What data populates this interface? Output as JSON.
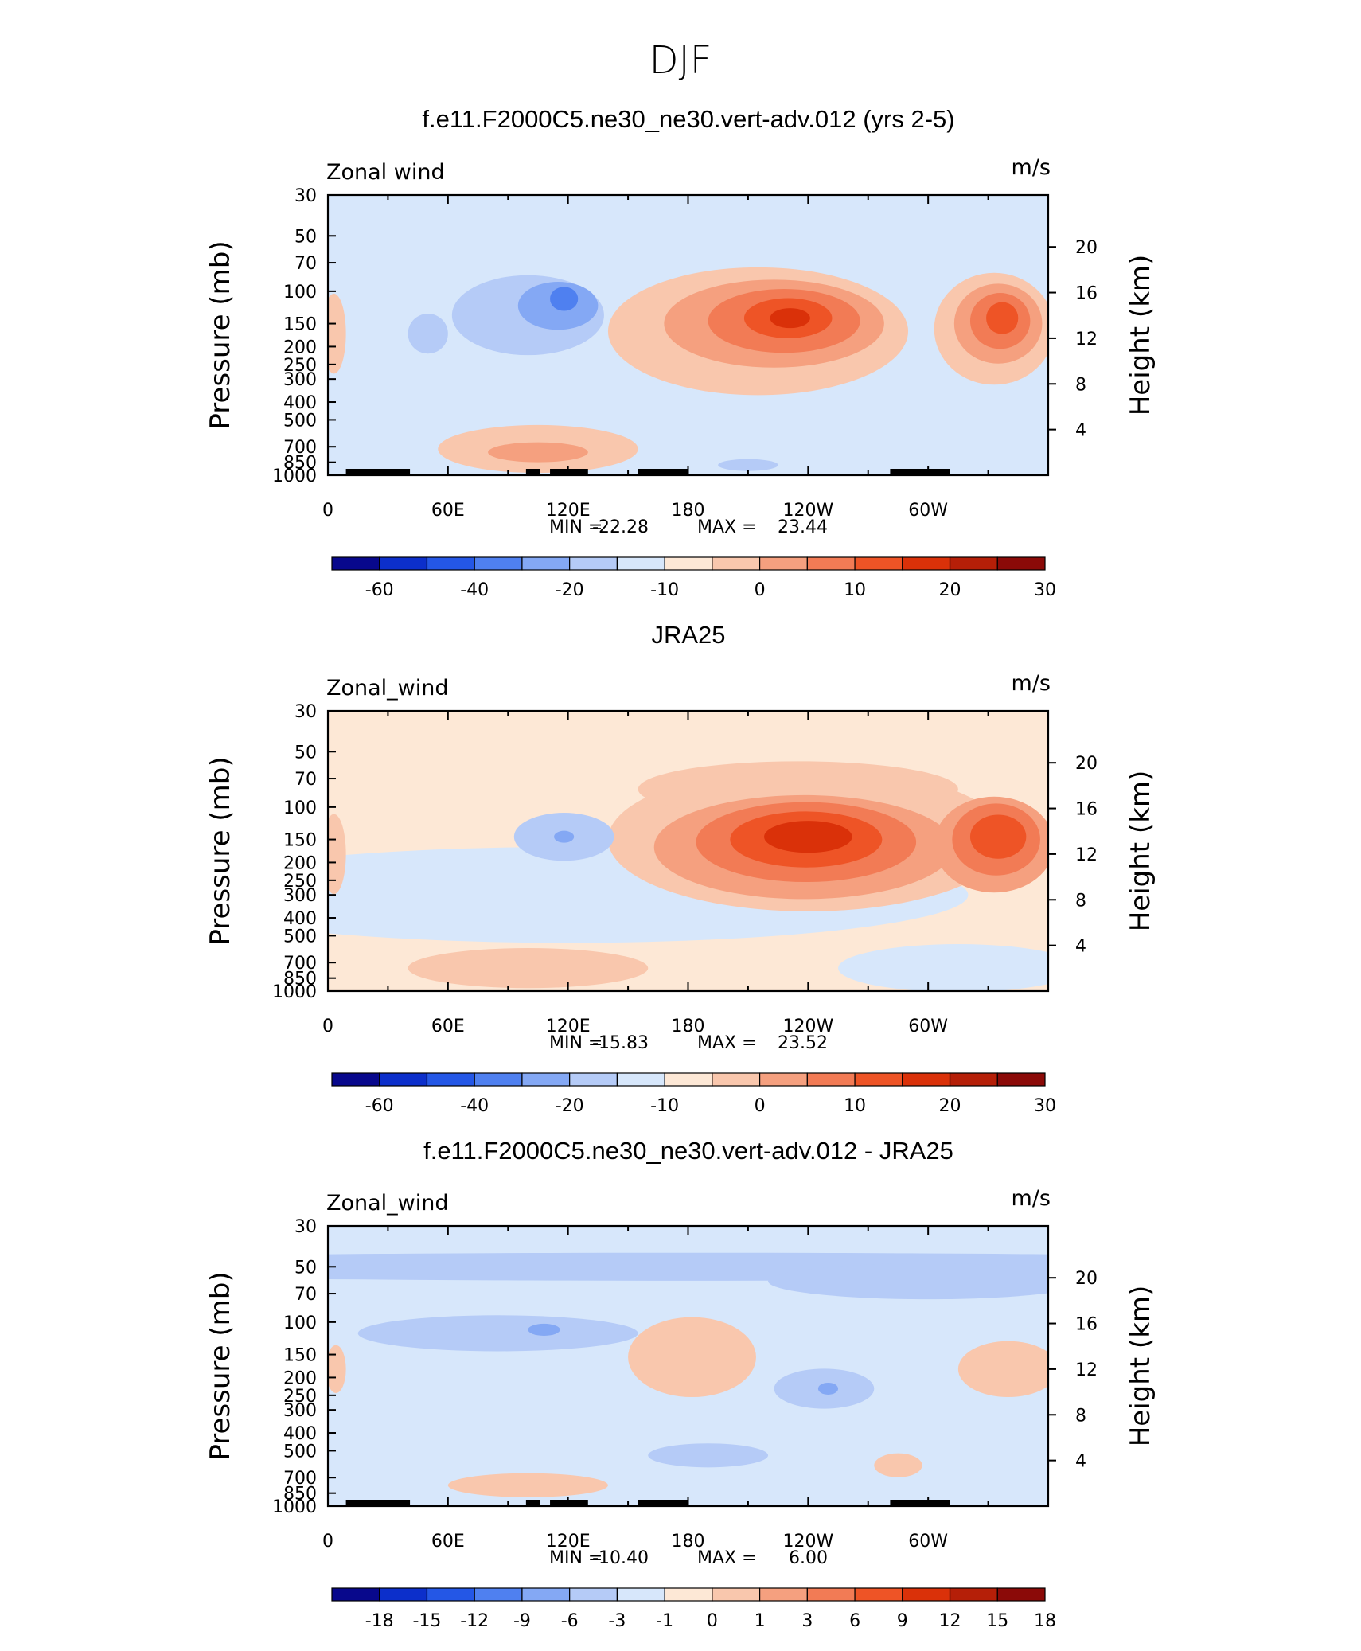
{
  "figure": {
    "title": "DJF"
  },
  "chart_data": [
    {
      "type": "heatmap",
      "title": "f.e11.F2000C5.ne30_ne30.vert-adv.012 (yrs 2-5)",
      "left_label": "Zonal wind",
      "right_label": "m/s",
      "ylabel": "Pressure (mb)",
      "y2label": "Height (km)",
      "xticks": [
        "0",
        "60E",
        "120E",
        "180",
        "120W",
        "60W"
      ],
      "yticks": [
        "30",
        "50",
        "70",
        "100",
        "150",
        "200",
        "250",
        "300",
        "400",
        "500",
        "700",
        "850",
        "1000"
      ],
      "y2ticks": [
        "20",
        "16",
        "12",
        "8",
        "4"
      ],
      "stats": {
        "min_label": "MIN =",
        "min": "-22.28",
        "max_label": "MAX =",
        "max": "23.44"
      },
      "ylim": [
        1000,
        30
      ],
      "xlim": [
        0,
        360
      ],
      "colorbar": {
        "labels": [
          "-60",
          "-40",
          "-20",
          "-10",
          "0",
          "10",
          "20",
          "30"
        ],
        "colors": [
          "#08088c",
          "#0c2fcb",
          "#2457e6",
          "#4f80f0",
          "#84a8f4",
          "#b5cbf7",
          "#d7e7fb",
          "#fde8d6",
          "#f9c7ad",
          "#f5a07f",
          "#f27b55",
          "#ee5426",
          "#da3109",
          "#b51f08",
          "#8b0a08"
        ]
      },
      "features": [
        {
          "level": 0,
          "lon": 180,
          "p": 200,
          "lon_w": 400,
          "lp_w": 6
        },
        {
          "level": -1,
          "lon": 150,
          "p": 150,
          "lon_w": 300,
          "lp_w": 6
        },
        {
          "level": 1,
          "lon": 215,
          "p": 165,
          "lon_w": 75,
          "lp_w": 1.6
        },
        {
          "level": 2,
          "lon": 223,
          "p": 150,
          "lon_w": 55,
          "lp_w": 1.1
        },
        {
          "level": 3,
          "lon": 228,
          "p": 145,
          "lon_w": 38,
          "lp_w": 0.8
        },
        {
          "level": 4,
          "lon": 230,
          "p": 140,
          "lon_w": 22,
          "lp_w": 0.5
        },
        {
          "level": 5,
          "lon": 231,
          "p": 140,
          "lon_w": 10,
          "lp_w": 0.25
        },
        {
          "level": 1,
          "lon": 333,
          "p": 160,
          "lon_w": 30,
          "lp_w": 1.4
        },
        {
          "level": 2,
          "lon": 335,
          "p": 150,
          "lon_w": 22,
          "lp_w": 1.0
        },
        {
          "level": 3,
          "lon": 336,
          "p": 145,
          "lon_w": 15,
          "lp_w": 0.7
        },
        {
          "level": 4,
          "lon": 337,
          "p": 140,
          "lon_w": 8,
          "lp_w": 0.4
        },
        {
          "level": -2,
          "lon": 100,
          "p": 135,
          "lon_w": 38,
          "lp_w": 1.0
        },
        {
          "level": -3,
          "lon": 115,
          "p": 120,
          "lon_w": 20,
          "lp_w": 0.6
        },
        {
          "level": -4,
          "lon": 118,
          "p": 110,
          "lon_w": 7,
          "lp_w": 0.3
        },
        {
          "level": -2,
          "lon": 50,
          "p": 170,
          "lon_w": 10,
          "lp_w": 0.5
        },
        {
          "level": 1,
          "lon": 105,
          "p": 720,
          "lon_w": 50,
          "lp_w": 0.6
        },
        {
          "level": 2,
          "lon": 105,
          "p": 750,
          "lon_w": 25,
          "lp_w": 0.25
        },
        {
          "level": 1,
          "lon": 3,
          "p": 170,
          "lon_w": 6,
          "lp_w": 1.0
        },
        {
          "level": -2,
          "lon": 210,
          "p": 880,
          "lon_w": 15,
          "lp_w": 0.15
        }
      ],
      "topography": [
        [
          9,
          41
        ],
        [
          28,
          40
        ],
        [
          99,
          106
        ],
        [
          111,
          130
        ],
        [
          155,
          180
        ],
        [
          281,
          311
        ]
      ]
    },
    {
      "type": "heatmap",
      "title": "JRA25",
      "left_label": "Zonal_wind",
      "right_label": "m/s",
      "ylabel": "Pressure (mb)",
      "y2label": "Height (km)",
      "xticks": [
        "0",
        "60E",
        "120E",
        "180",
        "120W",
        "60W"
      ],
      "yticks": [
        "30",
        "50",
        "70",
        "100",
        "150",
        "200",
        "250",
        "300",
        "400",
        "500",
        "700",
        "850",
        "1000"
      ],
      "y2ticks": [
        "20",
        "16",
        "12",
        "8",
        "4"
      ],
      "stats": {
        "min_label": "MIN =",
        "min": "-15.83",
        "max_label": "MAX =",
        "max": "23.52"
      },
      "ylim": [
        1000,
        30
      ],
      "xlim": [
        0,
        360
      ],
      "colorbar": {
        "labels": [
          "-60",
          "-40",
          "-20",
          "-10",
          "0",
          "10",
          "20",
          "30"
        ],
        "colors": [
          "#08088c",
          "#0c2fcb",
          "#2457e6",
          "#4f80f0",
          "#84a8f4",
          "#b5cbf7",
          "#d7e7fb",
          "#fde8d6",
          "#f9c7ad",
          "#f5a07f",
          "#f27b55",
          "#ee5426",
          "#da3109",
          "#b51f08",
          "#8b0a08"
        ]
      },
      "features": [
        {
          "level": 0,
          "lon": 180,
          "p": 300,
          "lon_w": 400,
          "lp_w": 6
        },
        {
          "level": -1,
          "lon": 120,
          "p": 300,
          "lon_w": 200,
          "lp_w": 1.2
        },
        {
          "level": -2,
          "lon": 118,
          "p": 145,
          "lon_w": 25,
          "lp_w": 0.6
        },
        {
          "level": -3,
          "lon": 118,
          "p": 145,
          "lon_w": 5,
          "lp_w": 0.15
        },
        {
          "level": 1,
          "lon": 240,
          "p": 150,
          "lon_w": 100,
          "lp_w": 1.8
        },
        {
          "level": 1,
          "lon": 235,
          "p": 80,
          "lon_w": 80,
          "lp_w": 0.7
        },
        {
          "level": 2,
          "lon": 238,
          "p": 165,
          "lon_w": 75,
          "lp_w": 1.3
        },
        {
          "level": 3,
          "lon": 239,
          "p": 155,
          "lon_w": 55,
          "lp_w": 1.0
        },
        {
          "level": 4,
          "lon": 239,
          "p": 150,
          "lon_w": 38,
          "lp_w": 0.7
        },
        {
          "level": 5,
          "lon": 240,
          "p": 145,
          "lon_w": 22,
          "lp_w": 0.4
        },
        {
          "level": 2,
          "lon": 333,
          "p": 160,
          "lon_w": 30,
          "lp_w": 1.2
        },
        {
          "level": 3,
          "lon": 334,
          "p": 150,
          "lon_w": 22,
          "lp_w": 0.9
        },
        {
          "level": 4,
          "lon": 335,
          "p": 145,
          "lon_w": 14,
          "lp_w": 0.55
        },
        {
          "level": 1,
          "lon": 100,
          "p": 750,
          "lon_w": 60,
          "lp_w": 0.5
        },
        {
          "level": -1,
          "lon": 315,
          "p": 750,
          "lon_w": 60,
          "lp_w": 0.6
        },
        {
          "level": 1,
          "lon": 3,
          "p": 180,
          "lon_w": 6,
          "lp_w": 1.0
        }
      ],
      "topography": []
    },
    {
      "type": "heatmap",
      "title": "f.e11.F2000C5.ne30_ne30.vert-adv.012 - JRA25",
      "left_label": "Zonal_wind",
      "right_label": "m/s",
      "ylabel": "Pressure (mb)",
      "y2label": "Height (km)",
      "xticks": [
        "0",
        "60E",
        "120E",
        "180",
        "120W",
        "60W"
      ],
      "yticks": [
        "30",
        "50",
        "70",
        "100",
        "150",
        "200",
        "250",
        "300",
        "400",
        "500",
        "700",
        "850",
        "1000"
      ],
      "y2ticks": [
        "20",
        "16",
        "12",
        "8",
        "4"
      ],
      "stats": {
        "min_label": "MIN =",
        "min": "-10.40",
        "max_label": "MAX =",
        "max": "6.00"
      },
      "ylim": [
        1000,
        30
      ],
      "xlim": [
        0,
        360
      ],
      "colorbar": {
        "labels": [
          "-18",
          "-15",
          "-12",
          "-9",
          "-6",
          "-3",
          "-1",
          "0",
          "1",
          "3",
          "6",
          "9",
          "12",
          "15",
          "18"
        ],
        "colors": [
          "#08088c",
          "#0c2fcb",
          "#2457e6",
          "#4f80f0",
          "#84a8f4",
          "#b5cbf7",
          "#d7e7fb",
          "#fde8d6",
          "#f9c7ad",
          "#f5a07f",
          "#f27b55",
          "#ee5426",
          "#da3109",
          "#b51f08",
          "#8b0a08"
        ]
      },
      "features": [
        {
          "level": -1,
          "lon": 180,
          "p": 250,
          "lon_w": 400,
          "lp_w": 6
        },
        {
          "level": -2,
          "lon": 180,
          "p": 50,
          "lon_w": 400,
          "lp_w": 0.35
        },
        {
          "level": -2,
          "lon": 300,
          "p": 60,
          "lon_w": 80,
          "lp_w": 0.45
        },
        {
          "level": -2,
          "lon": 85,
          "p": 115,
          "lon_w": 70,
          "lp_w": 0.45
        },
        {
          "level": -3,
          "lon": 108,
          "p": 110,
          "lon_w": 8,
          "lp_w": 0.15
        },
        {
          "level": -2,
          "lon": 248,
          "p": 230,
          "lon_w": 25,
          "lp_w": 0.5
        },
        {
          "level": -3,
          "lon": 250,
          "p": 230,
          "lon_w": 5,
          "lp_w": 0.15
        },
        {
          "level": -2,
          "lon": 190,
          "p": 530,
          "lon_w": 30,
          "lp_w": 0.3
        },
        {
          "level": 0,
          "lon": 180,
          "p": 160,
          "lon_w": 45,
          "lp_w": 1.3
        },
        {
          "level": 1,
          "lon": 182,
          "p": 155,
          "lon_w": 32,
          "lp_w": 1.0
        },
        {
          "level": 0,
          "lon": 320,
          "p": 170,
          "lon_w": 40,
          "lp_w": 1.0
        },
        {
          "level": 1,
          "lon": 340,
          "p": 180,
          "lon_w": 25,
          "lp_w": 0.7
        },
        {
          "level": 0,
          "lon": 100,
          "p": 750,
          "lon_w": 60,
          "lp_w": 0.5
        },
        {
          "level": 1,
          "lon": 100,
          "p": 770,
          "lon_w": 40,
          "lp_w": 0.3
        },
        {
          "level": 0,
          "lon": 285,
          "p": 620,
          "lon_w": 35,
          "lp_w": 0.5
        },
        {
          "level": 1,
          "lon": 285,
          "p": 600,
          "lon_w": 12,
          "lp_w": 0.3
        },
        {
          "level": 0,
          "lon": 5,
          "p": 180,
          "lon_w": 10,
          "lp_w": 1.0
        },
        {
          "level": 1,
          "lon": 4,
          "p": 180,
          "lon_w": 5,
          "lp_w": 0.6
        }
      ],
      "topography": [
        [
          9,
          41
        ],
        [
          28,
          40
        ],
        [
          99,
          106
        ],
        [
          111,
          130
        ],
        [
          155,
          180
        ],
        [
          281,
          311
        ]
      ]
    }
  ]
}
